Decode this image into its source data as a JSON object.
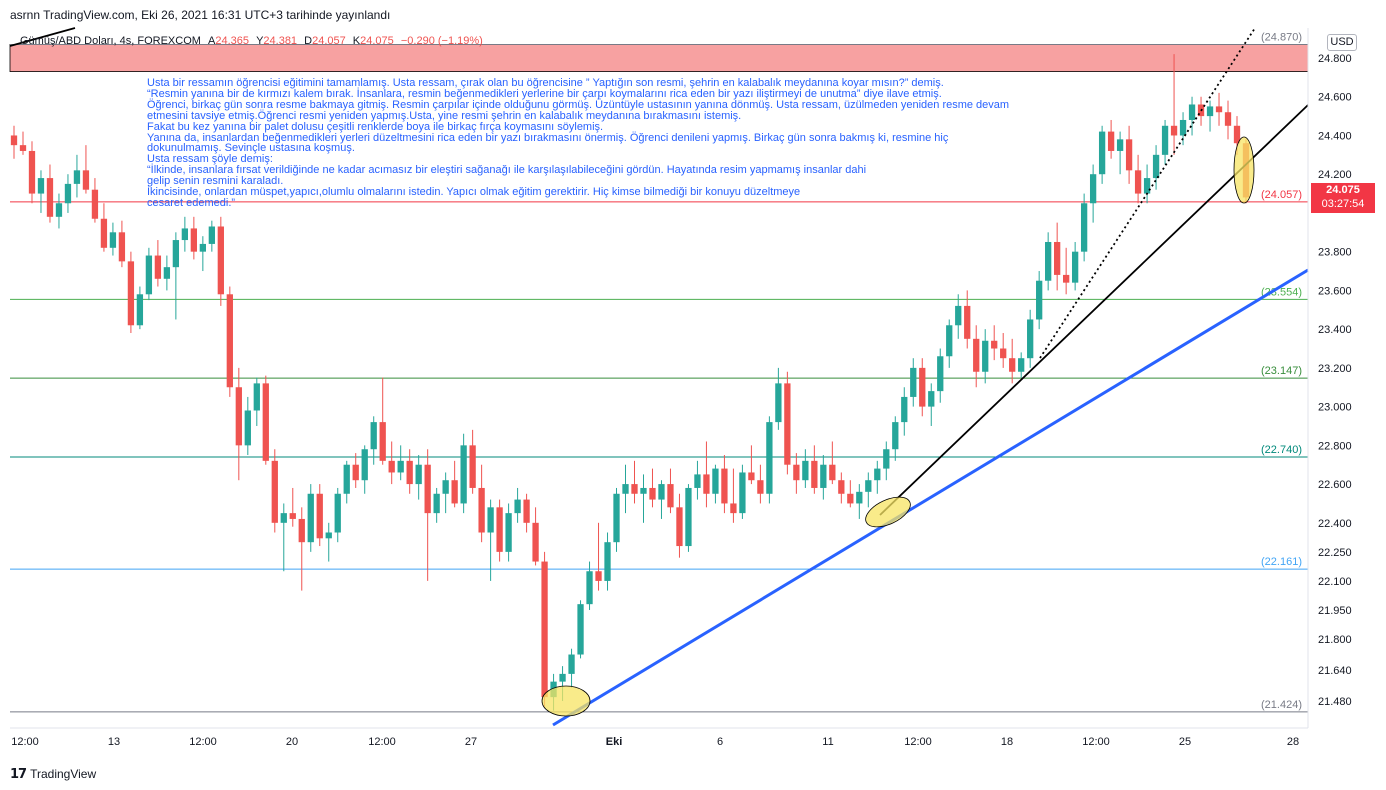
{
  "published": "asrnn TradingView.com, Eki 26, 2021 16:31 UTC+3 tarihinde yayınlandı",
  "legend": {
    "symbol": "Gümüş/ABD Doları, 4s, FOREXCOM",
    "open_label": "A",
    "open": "24.365",
    "high_label": "Y",
    "high": "24.381",
    "low_label": "D",
    "low": "24.057",
    "close_label": "K",
    "close": "24.075",
    "change": "−0.290 (−1.19%)"
  },
  "currency_badge": "USD",
  "current_price": {
    "price": "24.075",
    "countdown": "03:27:54"
  },
  "footer": {
    "logo": "17",
    "brand": "TradingView"
  },
  "note_lines": [
    "Usta bir ressamın öğrencisi eğitimini tamamlamış. Usta ressam, çırak olan bu öğrencisine ” Yaptığın son resmi, şehrin en kalabalık meydanına koyar mısın?” demiş.",
    "“Resmin yanına bir de kırmızı kalem bırak. İnsanlara, resmin beğenmedikleri yerlerine bir çarpı koymalarını rica eden bir yazı iliştirmeyi de unutma” diye ilave etmiş.",
    "Öğrenci, birkaç gün sonra resme bakmaya gitmiş. Resmin çarpılar içinde olduğunu görmüş. Üzüntüyle ustasının yanına dönmüş. Usta ressam, üzülmeden yeniden resme devam",
    "etmesini tavsiye etmiş.Öğrenci resmi yeniden yapmış.Usta, yine resmi şehrin en kalabalık meydanına bırakmasını istemiş.",
    "Fakat bu kez yanına bir palet dolusu çeşitli renklerde boya ile birkaç fırça koymasını söylemiş.",
    "Yanına da, insanlardan beğenmedikleri yerleri düzeltmesini rica eden bir yazı bırakmasını önermiş. Öğrenci denileni yapmış. Birkaç gün sonra bakmış ki, resmine hiç",
    "dokunulmamış. Sevinçle ustasına koşmuş.",
    "Usta ressam şöyle demiş:",
    "“İlkinde, insanlara fırsat verildiğinde ne kadar acımasız bir eleştiri sağanağı ile karşılaşılabileceğini gördün. Hayatında resim yapmamış insanlar dahi",
    "gelip senin resmini karaladı.",
    "İkincisinde, onlardan müspet,yapıcı,olumlu olmalarını istedin. Yapıcı olmak eğitim gerektirir. Hiç kimse bilmediği bir konuyu düzeltmeye",
    "cesaret edemedi.”"
  ],
  "chart_data": {
    "type": "candlestick",
    "title": "Gümüş/ABD Doları, 4s, FOREXCOM",
    "y_axis": {
      "ticks": [
        "24.800",
        "24.600",
        "24.400",
        "24.200",
        "23.800",
        "23.600",
        "23.400",
        "23.200",
        "23.000",
        "22.800",
        "22.600",
        "22.400",
        "22.250",
        "22.100",
        "21.950",
        "21.800",
        "21.640",
        "21.480"
      ],
      "range": [
        21.33,
        24.95
      ]
    },
    "x_axis": {
      "ticks": [
        "12:00",
        "13",
        "12:00",
        "20",
        "12:00",
        "27",
        "Eki",
        "6",
        "11",
        "12:00",
        "18",
        "12:00",
        "25",
        "28"
      ]
    },
    "horizontal_levels": [
      {
        "label": "(24.870)",
        "value": 24.87,
        "color": "#787b86"
      },
      {
        "label": "(24.057)",
        "value": 24.057,
        "color": "#f23645"
      },
      {
        "label": "(23.554)",
        "value": 23.554,
        "color": "#4caf50"
      },
      {
        "label": "(23.147)",
        "value": 23.147,
        "color": "#388e3c"
      },
      {
        "label": "(22.740)",
        "value": 22.74,
        "color": "#00897b"
      },
      {
        "label": "(22.161)",
        "value": 22.161,
        "color": "#42a5f5"
      },
      {
        "label": "(21.424)",
        "value": 21.424,
        "color": "#787b86"
      }
    ],
    "resistance_zone": {
      "from": 24.73,
      "to": 24.87,
      "color": "#f7a1a1"
    },
    "colors": {
      "up": "#26a69a",
      "down": "#ef5350",
      "trend_blue": "#2962ff",
      "trend_black": "#000000",
      "highlight": "#f7e463"
    },
    "ohlc": [
      [
        24.4,
        24.45,
        24.28,
        24.35
      ],
      [
        24.35,
        24.42,
        24.3,
        24.32
      ],
      [
        24.32,
        24.37,
        24.05,
        24.1
      ],
      [
        24.1,
        24.22,
        24.0,
        24.18
      ],
      [
        24.18,
        24.25,
        23.95,
        23.98
      ],
      [
        23.98,
        24.1,
        23.92,
        24.05
      ],
      [
        24.05,
        24.2,
        24.0,
        24.15
      ],
      [
        24.15,
        24.3,
        24.08,
        24.22
      ],
      [
        24.22,
        24.35,
        24.1,
        24.12
      ],
      [
        24.12,
        24.18,
        23.95,
        23.97
      ],
      [
        23.97,
        24.05,
        23.8,
        23.82
      ],
      [
        23.82,
        23.95,
        23.78,
        23.9
      ],
      [
        23.9,
        23.96,
        23.72,
        23.75
      ],
      [
        23.75,
        23.8,
        23.38,
        23.42
      ],
      [
        23.42,
        23.62,
        23.4,
        23.58
      ],
      [
        23.58,
        23.82,
        23.55,
        23.78
      ],
      [
        23.78,
        23.86,
        23.62,
        23.66
      ],
      [
        23.66,
        23.78,
        23.6,
        23.72
      ],
      [
        23.72,
        23.9,
        23.45,
        23.86
      ],
      [
        23.86,
        23.98,
        23.8,
        23.92
      ],
      [
        23.92,
        23.98,
        23.76,
        23.8
      ],
      [
        23.8,
        23.88,
        23.7,
        23.84
      ],
      [
        23.84,
        23.96,
        23.8,
        23.93
      ],
      [
        23.93,
        23.98,
        23.52,
        23.58
      ],
      [
        23.58,
        23.62,
        23.05,
        23.1
      ],
      [
        23.1,
        23.2,
        22.62,
        22.8
      ],
      [
        22.8,
        23.05,
        22.75,
        22.98
      ],
      [
        22.98,
        23.15,
        22.9,
        23.12
      ],
      [
        23.12,
        23.16,
        22.7,
        22.72
      ],
      [
        22.72,
        22.78,
        22.35,
        22.4
      ],
      [
        22.4,
        22.5,
        22.15,
        22.45
      ],
      [
        22.45,
        22.58,
        22.38,
        22.42
      ],
      [
        22.42,
        22.48,
        22.05,
        22.3
      ],
      [
        22.3,
        22.6,
        22.25,
        22.55
      ],
      [
        22.55,
        22.6,
        22.28,
        22.32
      ],
      [
        22.32,
        22.4,
        22.2,
        22.35
      ],
      [
        22.35,
        22.58,
        22.3,
        22.55
      ],
      [
        22.55,
        22.72,
        22.5,
        22.7
      ],
      [
        22.7,
        22.76,
        22.58,
        22.62
      ],
      [
        22.62,
        22.8,
        22.55,
        22.78
      ],
      [
        22.78,
        22.95,
        22.7,
        22.92
      ],
      [
        22.92,
        23.15,
        22.7,
        22.72
      ],
      [
        22.72,
        22.82,
        22.6,
        22.66
      ],
      [
        22.66,
        22.8,
        22.62,
        22.72
      ],
      [
        22.72,
        22.78,
        22.55,
        22.6
      ],
      [
        22.6,
        22.75,
        22.52,
        22.7
      ],
      [
        22.7,
        22.78,
        22.1,
        22.45
      ],
      [
        22.45,
        22.58,
        22.4,
        22.55
      ],
      [
        22.55,
        22.66,
        22.45,
        22.62
      ],
      [
        22.62,
        22.72,
        22.48,
        22.5
      ],
      [
        22.5,
        22.86,
        22.45,
        22.8
      ],
      [
        22.8,
        22.88,
        22.55,
        22.58
      ],
      [
        22.58,
        22.7,
        22.3,
        22.35
      ],
      [
        22.35,
        22.52,
        22.1,
        22.48
      ],
      [
        22.48,
        22.52,
        22.2,
        22.25
      ],
      [
        22.25,
        22.5,
        22.2,
        22.45
      ],
      [
        22.45,
        22.58,
        22.4,
        22.52
      ],
      [
        22.52,
        22.55,
        22.35,
        22.4
      ],
      [
        22.4,
        22.48,
        22.18,
        22.2
      ],
      [
        22.2,
        22.25,
        21.45,
        21.5
      ],
      [
        21.5,
        21.62,
        21.43,
        21.58
      ],
      [
        21.58,
        21.66,
        21.48,
        21.62
      ],
      [
        21.62,
        21.75,
        21.55,
        21.72
      ],
      [
        21.72,
        22.0,
        21.7,
        21.98
      ],
      [
        21.98,
        22.2,
        21.95,
        22.15
      ],
      [
        22.15,
        22.4,
        22.05,
        22.1
      ],
      [
        22.1,
        22.35,
        22.05,
        22.3
      ],
      [
        22.3,
        22.58,
        22.25,
        22.55
      ],
      [
        22.55,
        22.7,
        22.45,
        22.6
      ],
      [
        22.6,
        22.72,
        22.5,
        22.55
      ],
      [
        22.55,
        22.65,
        22.4,
        22.58
      ],
      [
        22.58,
        22.68,
        22.48,
        22.52
      ],
      [
        22.52,
        22.62,
        22.42,
        22.6
      ],
      [
        22.6,
        22.68,
        22.45,
        22.48
      ],
      [
        22.48,
        22.55,
        22.22,
        22.28
      ],
      [
        22.28,
        22.6,
        22.25,
        22.58
      ],
      [
        22.58,
        22.72,
        22.52,
        22.65
      ],
      [
        22.65,
        22.82,
        22.48,
        22.55
      ],
      [
        22.55,
        22.7,
        22.5,
        22.68
      ],
      [
        22.68,
        22.75,
        22.45,
        22.5
      ],
      [
        22.5,
        22.68,
        22.4,
        22.45
      ],
      [
        22.45,
        22.7,
        22.42,
        22.66
      ],
      [
        22.66,
        22.8,
        22.6,
        22.62
      ],
      [
        22.62,
        22.7,
        22.5,
        22.55
      ],
      [
        22.55,
        22.95,
        22.5,
        22.92
      ],
      [
        22.92,
        23.2,
        22.88,
        23.12
      ],
      [
        23.12,
        23.18,
        22.65,
        22.7
      ],
      [
        22.7,
        22.76,
        22.55,
        22.62
      ],
      [
        22.62,
        22.78,
        22.58,
        22.72
      ],
      [
        22.72,
        22.8,
        22.55,
        22.58
      ],
      [
        22.58,
        22.75,
        22.52,
        22.7
      ],
      [
        22.7,
        22.82,
        22.6,
        22.62
      ],
      [
        22.62,
        22.66,
        22.5,
        22.55
      ],
      [
        22.55,
        22.62,
        22.48,
        22.5
      ],
      [
        22.5,
        22.6,
        22.42,
        22.56
      ],
      [
        22.56,
        22.66,
        22.48,
        22.62
      ],
      [
        22.62,
        22.72,
        22.55,
        22.68
      ],
      [
        22.68,
        22.82,
        22.62,
        22.78
      ],
      [
        22.78,
        22.95,
        22.72,
        22.92
      ],
      [
        22.92,
        23.1,
        22.85,
        23.05
      ],
      [
        23.05,
        23.25,
        23.0,
        23.2
      ],
      [
        23.2,
        23.25,
        22.95,
        23.0
      ],
      [
        23.0,
        23.12,
        22.9,
        23.08
      ],
      [
        23.08,
        23.3,
        23.02,
        23.26
      ],
      [
        23.26,
        23.45,
        23.2,
        23.42
      ],
      [
        23.42,
        23.58,
        23.35,
        23.52
      ],
      [
        23.52,
        23.6,
        23.3,
        23.35
      ],
      [
        23.35,
        23.42,
        23.1,
        23.18
      ],
      [
        23.18,
        23.4,
        23.12,
        23.34
      ],
      [
        23.34,
        23.42,
        23.24,
        23.3
      ],
      [
        23.3,
        23.38,
        23.2,
        23.25
      ],
      [
        23.25,
        23.35,
        23.12,
        23.18
      ],
      [
        23.18,
        23.28,
        23.15,
        23.25
      ],
      [
        23.25,
        23.5,
        23.2,
        23.45
      ],
      [
        23.45,
        23.7,
        23.4,
        23.65
      ],
      [
        23.65,
        23.9,
        23.6,
        23.85
      ],
      [
        23.85,
        23.95,
        23.6,
        23.68
      ],
      [
        23.68,
        23.82,
        23.58,
        23.64
      ],
      [
        23.64,
        23.85,
        23.6,
        23.8
      ],
      [
        23.8,
        24.1,
        23.75,
        24.05
      ],
      [
        24.05,
        24.25,
        23.95,
        24.2
      ],
      [
        24.2,
        24.45,
        24.15,
        24.42
      ],
      [
        24.42,
        24.48,
        24.28,
        24.32
      ],
      [
        24.32,
        24.42,
        24.2,
        24.38
      ],
      [
        24.38,
        24.45,
        24.15,
        24.22
      ],
      [
        24.22,
        24.3,
        24.05,
        24.1
      ],
      [
        24.1,
        24.25,
        24.05,
        24.18
      ],
      [
        24.18,
        24.35,
        24.12,
        24.3
      ],
      [
        24.3,
        24.48,
        24.25,
        24.45
      ],
      [
        24.45,
        24.82,
        24.3,
        24.4
      ],
      [
        24.4,
        24.52,
        24.35,
        24.48
      ],
      [
        24.48,
        24.6,
        24.4,
        24.56
      ],
      [
        24.56,
        24.6,
        24.45,
        24.5
      ],
      [
        24.5,
        24.58,
        24.42,
        24.55
      ],
      [
        24.55,
        24.62,
        24.45,
        24.52
      ],
      [
        24.52,
        24.58,
        24.38,
        24.45
      ],
      [
        24.45,
        24.5,
        24.3,
        24.36
      ],
      [
        24.36,
        24.38,
        24.05,
        24.08
      ]
    ]
  }
}
